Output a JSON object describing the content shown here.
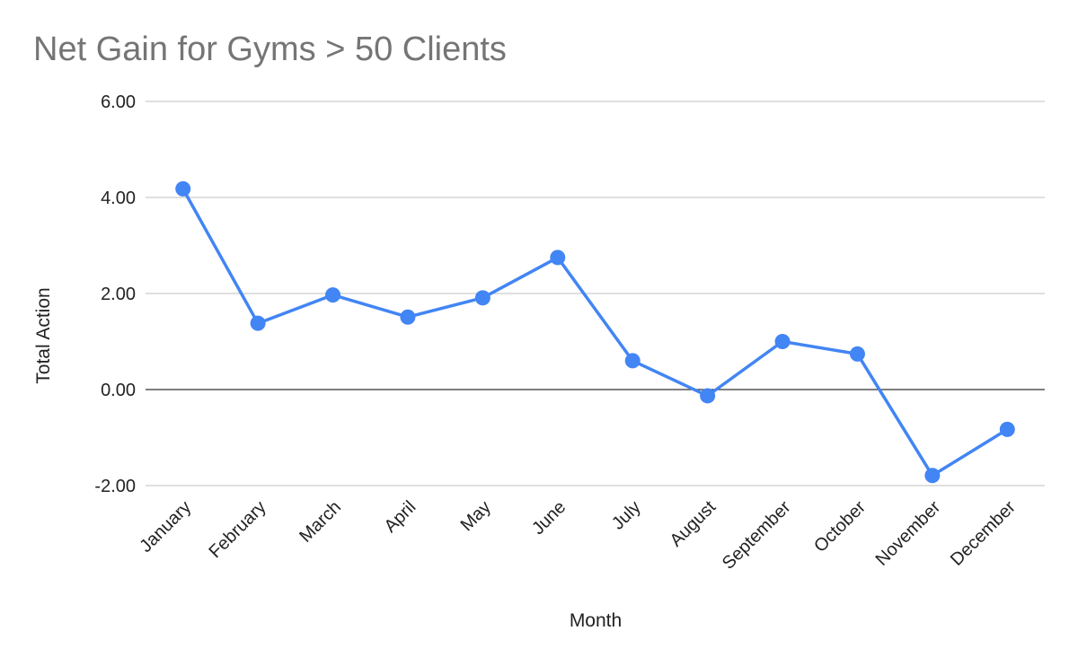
{
  "chart_data": {
    "type": "line",
    "title": "Net Gain for Gyms > 50 Clients",
    "xlabel": "Month",
    "ylabel": "Total Action",
    "categories": [
      "January",
      "February",
      "March",
      "April",
      "May",
      "June",
      "July",
      "August",
      "September",
      "October",
      "November",
      "December"
    ],
    "series": [
      {
        "values": [
          4.18,
          1.38,
          1.97,
          1.51,
          1.91,
          2.75,
          0.6,
          -0.13,
          1.0,
          0.74,
          -1.79,
          -0.83
        ],
        "color": "#4285f4"
      }
    ],
    "ylim": [
      -2,
      6
    ],
    "yticks": [
      "6.00",
      "4.00",
      "2.00",
      "0.00",
      "-2.00"
    ],
    "ytick_values": [
      6,
      4,
      2,
      0,
      -2
    ],
    "grid": true,
    "zero_line_color": "#333333",
    "grid_color": "#cccccc"
  }
}
